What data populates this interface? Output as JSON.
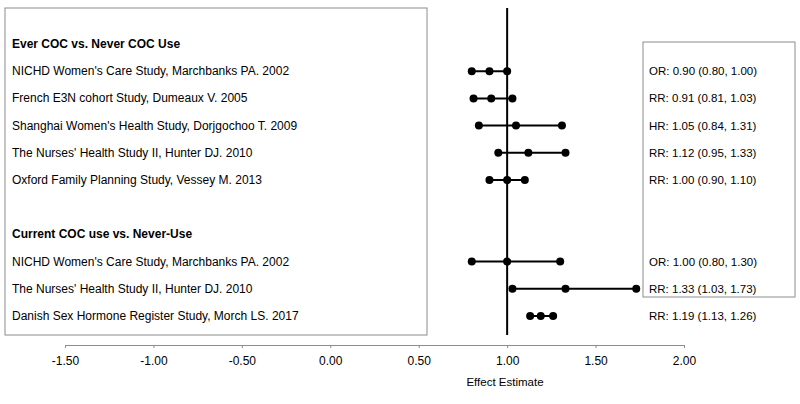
{
  "chart_data": {
    "type": "forest",
    "x_label": "Effect Estimate",
    "xlim": [
      -1.5,
      2.0
    ],
    "xticks": [
      {
        "value": -1.5,
        "label": "-1.50"
      },
      {
        "value": -1.0,
        "label": "-1.00"
      },
      {
        "value": -0.5,
        "label": "-0.50"
      },
      {
        "value": 0.0,
        "label": "0.00"
      },
      {
        "value": 0.5,
        "label": "0.50"
      },
      {
        "value": 1.0,
        "label": "1.00"
      },
      {
        "value": 1.5,
        "label": "1.50"
      },
      {
        "value": 2.0,
        "label": "2.00"
      }
    ],
    "reference": 1.0,
    "color": "#000000",
    "groups": [
      {
        "title": "Ever COC vs. Never COC Use",
        "categories": [
          "NICHD Women's  Care  Study, Marchbanks PA. 2002",
          "French E3N cohort Study, Dumeaux V. 2005",
          "Shanghai Women's Health Study, Dorjgochoo T. 2009",
          "The Nurses' Health Study II, Hunter DJ. 2010",
          "Oxford Family Planning Study, Vessey M. 2013"
        ],
        "values": [
          0.9,
          0.91,
          1.05,
          1.12,
          1.0
        ],
        "lower": [
          0.8,
          0.81,
          0.84,
          0.95,
          0.9
        ],
        "upper": [
          1.0,
          1.03,
          1.31,
          1.33,
          1.1
        ],
        "value_labels": [
          "OR: 0.90 (0.80, 1.00)",
          "RR: 0.91 (0.81, 1.03)",
          "HR: 1.05 (0.84, 1.31)",
          "RR: 1.12 (0.95, 1.33)",
          "RR: 1.00 (0.90, 1.10)"
        ]
      },
      {
        "title": "Current COC use vs. Never-Use",
        "categories": [
          "NICHD Women's Care Study, Marchbanks PA. 2002",
          "The Nurses' Health Study II, Hunter DJ. 2010",
          "Danish Sex Hormone Register Study, Morch LS. 2017"
        ],
        "values": [
          1.0,
          1.33,
          1.19
        ],
        "lower": [
          0.8,
          1.03,
          1.13
        ],
        "upper": [
          1.3,
          1.73,
          1.26
        ],
        "value_labels": [
          "OR: 1.00 (0.80, 1.30)",
          "RR: 1.33 (1.03, 1.73)",
          "RR: 1.19 (1.13, 1.26)"
        ]
      }
    ]
  }
}
